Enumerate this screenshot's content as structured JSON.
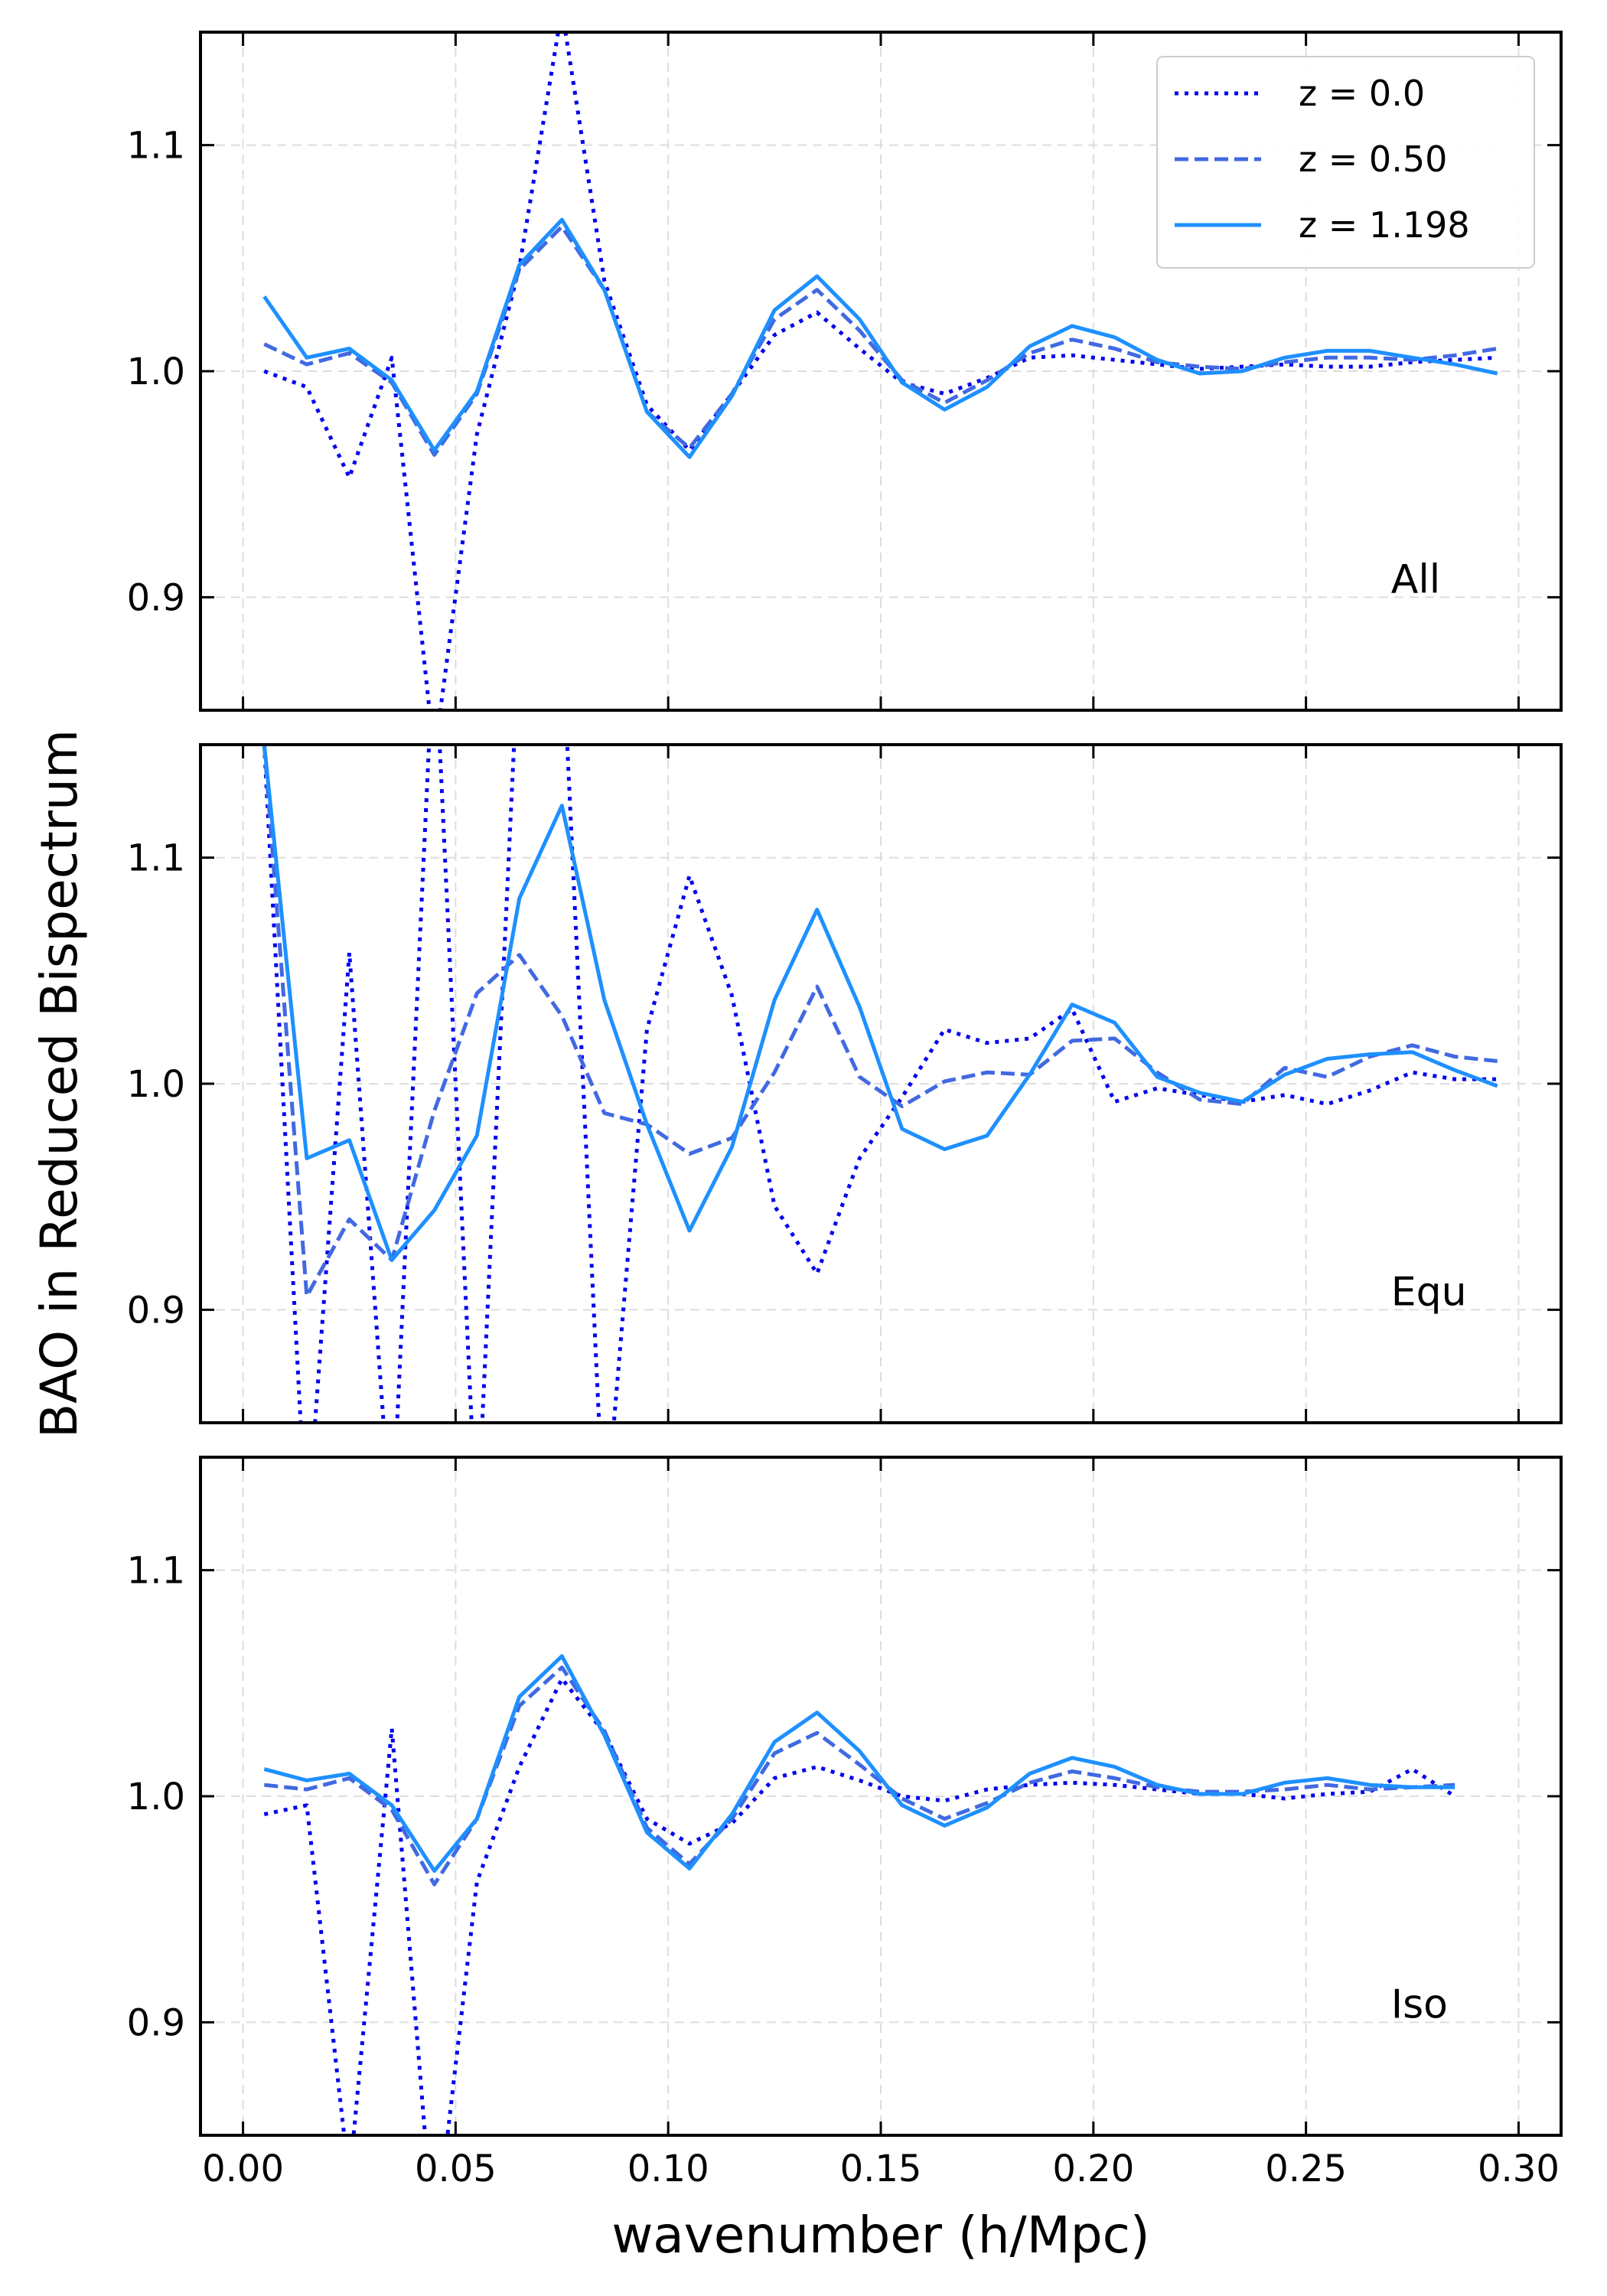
{
  "figure": {
    "xlabel": "wavenumber (h/Mpc)",
    "ylabel": "BAO in Reduced Bispectrum"
  },
  "legend": {
    "placement": "top-right of first panel",
    "entries": [
      {
        "label": "z = 0.0",
        "style": "dotted",
        "color": "#0000ee"
      },
      {
        "label": "z = 0.50",
        "style": "dashed",
        "color": "#4169e1"
      },
      {
        "label": "z = 1.198",
        "style": "solid",
        "color": "#1e90ff"
      }
    ]
  },
  "x_ticks": [
    "0.00",
    "0.05",
    "0.10",
    "0.15",
    "0.20",
    "0.25",
    "0.30"
  ],
  "y_ticks": [
    "0.9",
    "1.0",
    "1.1"
  ],
  "chart_data": [
    {
      "type": "line",
      "panel_label": "All",
      "xlim": [
        -0.01,
        0.31
      ],
      "ylim": [
        0.85,
        1.15
      ],
      "grid": true,
      "x": [
        0.005,
        0.015,
        0.025,
        0.035,
        0.045,
        0.055,
        0.065,
        0.075,
        0.085,
        0.095,
        0.105,
        0.115,
        0.125,
        0.135,
        0.145,
        0.155,
        0.165,
        0.175,
        0.185,
        0.195,
        0.205,
        0.215,
        0.225,
        0.235,
        0.245,
        0.255,
        0.265,
        0.275,
        0.285,
        0.295
      ],
      "series": [
        {
          "name": "z = 0.0",
          "values": [
            1.0,
            0.993,
            0.953,
            1.006,
            0.83,
            0.972,
            1.046,
            1.16,
            1.04,
            0.985,
            0.965,
            0.99,
            1.016,
            1.026,
            1.01,
            0.995,
            0.99,
            0.997,
            1.006,
            1.007,
            1.005,
            1.003,
            1.001,
            1.002,
            1.003,
            1.002,
            1.002,
            1.004,
            1.005,
            1.006
          ]
        },
        {
          "name": "z = 0.50",
          "values": [
            1.012,
            1.003,
            1.008,
            0.995,
            0.963,
            0.99,
            1.045,
            1.064,
            1.036,
            0.982,
            0.966,
            0.99,
            1.023,
            1.036,
            1.018,
            0.996,
            0.986,
            0.996,
            1.008,
            1.014,
            1.01,
            1.004,
            1.002,
            1.001,
            1.004,
            1.006,
            1.006,
            1.005,
            1.007,
            1.01
          ]
        },
        {
          "name": "z = 1.198",
          "values": [
            1.033,
            1.006,
            1.01,
            0.996,
            0.965,
            0.991,
            1.047,
            1.067,
            1.036,
            0.982,
            0.962,
            0.989,
            1.027,
            1.042,
            1.023,
            0.995,
            0.983,
            0.993,
            1.011,
            1.02,
            1.015,
            1.005,
            0.999,
            1.0,
            1.006,
            1.009,
            1.009,
            1.006,
            1.003,
            0.999
          ]
        }
      ]
    },
    {
      "type": "line",
      "panel_label": "Equ",
      "xlim": [
        -0.01,
        0.31
      ],
      "ylim": [
        0.85,
        1.15
      ],
      "grid": true,
      "x": [
        0.005,
        0.015,
        0.025,
        0.035,
        0.045,
        0.055,
        0.065,
        0.075,
        0.085,
        0.095,
        0.105,
        0.115,
        0.125,
        0.135,
        0.145,
        0.155,
        0.165,
        0.175,
        0.185,
        0.195,
        0.205,
        0.215,
        0.225,
        0.235,
        0.245,
        0.255,
        0.265,
        0.275,
        0.285,
        0.295
      ],
      "series": [
        {
          "name": "z = 0.0",
          "values": [
            1.15,
            0.8,
            1.058,
            0.8,
            1.2,
            0.8,
            1.2,
            1.2,
            0.8,
            1.024,
            1.092,
            1.039,
            0.946,
            0.916,
            0.967,
            0.994,
            1.024,
            1.018,
            1.02,
            1.033,
            0.992,
            0.998,
            0.995,
            0.992,
            0.995,
            0.991,
            0.997,
            1.005,
            1.002,
            1.002
          ]
        },
        {
          "name": "z = 0.50",
          "values": [
            1.15,
            0.906,
            0.94,
            0.922,
            0.988,
            1.04,
            1.057,
            1.03,
            0.987,
            0.982,
            0.969,
            0.976,
            1.005,
            1.043,
            1.003,
            0.99,
            1.001,
            1.005,
            1.004,
            1.019,
            1.02,
            1.005,
            0.993,
            0.991,
            1.007,
            1.003,
            1.012,
            1.017,
            1.012,
            1.01
          ]
        },
        {
          "name": "z = 1.198",
          "values": [
            1.15,
            0.967,
            0.975,
            0.922,
            0.944,
            0.977,
            1.082,
            1.123,
            1.037,
            0.982,
            0.935,
            0.972,
            1.037,
            1.077,
            1.034,
            0.98,
            0.971,
            0.977,
            1.004,
            1.035,
            1.027,
            1.003,
            0.996,
            0.992,
            1.004,
            1.011,
            1.013,
            1.014,
            1.006,
            0.999
          ]
        }
      ]
    },
    {
      "type": "line",
      "panel_label": "Iso",
      "xlim": [
        -0.01,
        0.31
      ],
      "ylim": [
        0.85,
        1.15
      ],
      "grid": true,
      "x": [
        0.005,
        0.015,
        0.025,
        0.035,
        0.045,
        0.055,
        0.065,
        0.075,
        0.085,
        0.095,
        0.105,
        0.115,
        0.125,
        0.135,
        0.145,
        0.155,
        0.165,
        0.175,
        0.185,
        0.195,
        0.205,
        0.215,
        0.225,
        0.235,
        0.245,
        0.255,
        0.265,
        0.275,
        0.285
      ],
      "series": [
        {
          "name": "z = 0.0",
          "values": [
            0.992,
            0.996,
            0.83,
            1.03,
            0.8,
            0.962,
            1.013,
            1.052,
            1.028,
            0.99,
            0.979,
            0.988,
            1.008,
            1.013,
            1.007,
            1.0,
            0.998,
            1.003,
            1.005,
            1.006,
            1.005,
            1.003,
            1.001,
            1.001,
            0.999,
            1.001,
            1.002,
            1.012,
            1.0
          ]
        },
        {
          "name": "z = 0.50",
          "values": [
            1.005,
            1.003,
            1.008,
            0.994,
            0.961,
            0.99,
            1.04,
            1.057,
            1.029,
            0.986,
            0.97,
            0.99,
            1.019,
            1.028,
            1.014,
            0.999,
            0.99,
            0.997,
            1.006,
            1.011,
            1.008,
            1.004,
            1.002,
            1.002,
            1.003,
            1.005,
            1.003,
            1.004,
            1.005
          ]
        },
        {
          "name": "z = 1.198",
          "values": [
            1.012,
            1.007,
            1.01,
            0.996,
            0.967,
            0.99,
            1.044,
            1.062,
            1.027,
            0.984,
            0.968,
            0.992,
            1.024,
            1.037,
            1.02,
            0.996,
            0.987,
            0.995,
            1.01,
            1.017,
            1.013,
            1.005,
            1.001,
            1.001,
            1.006,
            1.008,
            1.005,
            1.004,
            1.004
          ]
        }
      ]
    }
  ]
}
